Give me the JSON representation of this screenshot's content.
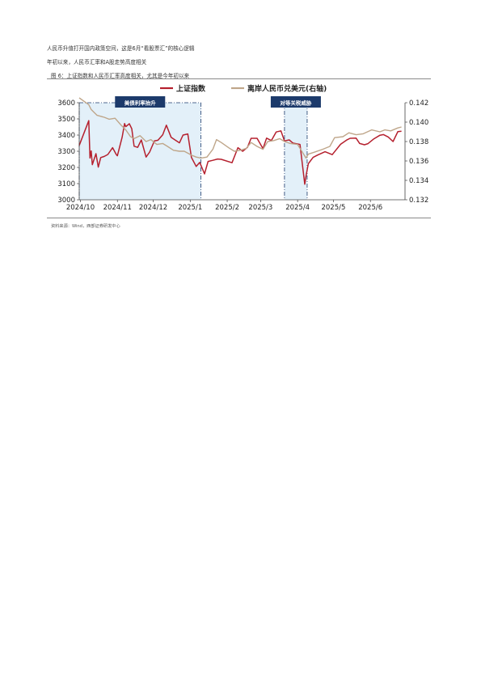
{
  "text": {
    "line1": "人民币升值打开国内政策空间，这是6月“看股票汇”的核心逻辑",
    "line2": "年初以来，人民币汇率和A股走势高度相关"
  },
  "figure": {
    "title": "图 6：上证指数和人民币汇率高度相关，尤其是今年初以来",
    "source": "资料来源：Wind，西部证券研发中心"
  },
  "chart_data": {
    "type": "line",
    "x_ticks": [
      "2024/10",
      "2024/11",
      "2024/12",
      "2025/1",
      "2025/2",
      "2025/3",
      "2025/4",
      "2025/5",
      "2025/6"
    ],
    "ylim": [
      3000,
      3600
    ],
    "y_ticks": [
      3000,
      3100,
      3200,
      3300,
      3400,
      3500,
      3600
    ],
    "y2lim": [
      0.132,
      0.142
    ],
    "y2_ticks": [
      "0.132",
      "0.134",
      "0.136",
      "0.138",
      "0.140",
      "0.142"
    ],
    "legend": {
      "placement": "top-center"
    },
    "colors": {
      "sse": "#b5202e",
      "cny": "#bfa68a",
      "annotation_fill": "#e3f0f9",
      "annotation_label_bg": "#1c3a6b"
    },
    "series": [
      {
        "name": "上证指数",
        "axis": "left",
        "x": [
          "2024-09-30",
          "2024-10-08",
          "2024-10-09",
          "2024-10-10",
          "2024-10-11",
          "2024-10-14",
          "2024-10-16",
          "2024-10-18",
          "2024-10-21",
          "2024-10-24",
          "2024-10-28",
          "2024-10-31",
          "2024-11-01",
          "2024-11-05",
          "2024-11-07",
          "2024-11-08",
          "2024-11-11",
          "2024-11-13",
          "2024-11-15",
          "2024-11-18",
          "2024-11-21",
          "2024-11-25",
          "2024-11-28",
          "2024-12-02",
          "2024-12-05",
          "2024-12-09",
          "2024-12-10",
          "2024-12-12",
          "2024-12-16",
          "2024-12-19",
          "2024-12-23",
          "2024-12-26",
          "2024-12-30",
          "2025-01-02",
          "2025-01-06",
          "2025-01-09",
          "2025-01-13",
          "2025-01-16",
          "2025-01-20",
          "2025-01-24",
          "2025-01-27",
          "2025-02-05",
          "2025-02-10",
          "2025-02-14",
          "2025-02-18",
          "2025-02-21",
          "2025-02-26",
          "2025-03-03",
          "2025-03-06",
          "2025-03-10",
          "2025-03-14",
          "2025-03-18",
          "2025-03-21",
          "2025-03-25",
          "2025-03-28",
          "2025-04-03",
          "2025-04-07",
          "2025-04-08",
          "2025-04-10",
          "2025-04-14",
          "2025-04-18",
          "2025-04-24",
          "2025-04-30",
          "2025-05-07",
          "2025-05-12",
          "2025-05-15",
          "2025-05-20",
          "2025-05-23",
          "2025-05-27",
          "2025-05-30",
          "2025-06-04",
          "2025-06-09",
          "2025-06-12",
          "2025-06-16",
          "2025-06-20",
          "2025-06-24",
          "2025-06-27"
        ],
        "values": [
          3336,
          3489,
          3258,
          3302,
          3217,
          3285,
          3202,
          3261,
          3268,
          3280,
          3322,
          3280,
          3272,
          3387,
          3471,
          3452,
          3470,
          3439,
          3331,
          3324,
          3370,
          3264,
          3295,
          3364,
          3368,
          3402,
          3422,
          3461,
          3386,
          3371,
          3352,
          3400,
          3407,
          3262,
          3206,
          3231,
          3160,
          3237,
          3244,
          3252,
          3250,
          3229,
          3322,
          3300,
          3324,
          3380,
          3380,
          3316,
          3381,
          3366,
          3419,
          3426,
          3364,
          3370,
          3351,
          3342,
          3096,
          3145,
          3223,
          3262,
          3277,
          3297,
          3279,
          3343,
          3369,
          3380,
          3381,
          3348,
          3340,
          3347,
          3377,
          3399,
          3403,
          3388,
          3360,
          3421,
          3424
        ]
      },
      {
        "name": "离岸人民币兑美元(右轴)",
        "axis": "right",
        "x": [
          "2024-09-30",
          "2024-10-08",
          "2024-10-10",
          "2024-10-15",
          "2024-10-21",
          "2024-10-25",
          "2024-10-30",
          "2024-11-04",
          "2024-11-08",
          "2024-11-12",
          "2024-11-15",
          "2024-11-20",
          "2024-11-25",
          "2024-11-29",
          "2024-12-04",
          "2024-12-09",
          "2024-12-13",
          "2024-12-18",
          "2024-12-23",
          "2024-12-27",
          "2025-01-02",
          "2025-01-06",
          "2025-01-10",
          "2025-01-15",
          "2025-01-20",
          "2025-01-23",
          "2025-01-27",
          "2025-02-03",
          "2025-02-07",
          "2025-02-12",
          "2025-02-17",
          "2025-02-21",
          "2025-02-26",
          "2025-03-03",
          "2025-03-07",
          "2025-03-12",
          "2025-03-17",
          "2025-03-21",
          "2025-03-26",
          "2025-04-01",
          "2025-04-04",
          "2025-04-08",
          "2025-04-10",
          "2025-04-15",
          "2025-04-22",
          "2025-04-28",
          "2025-05-02",
          "2025-05-09",
          "2025-05-14",
          "2025-05-20",
          "2025-05-26",
          "2025-06-02",
          "2025-06-09",
          "2025-06-13",
          "2025-06-18",
          "2025-06-24",
          "2025-06-27"
        ],
        "values": [
          0.1425,
          0.1418,
          0.1413,
          0.1407,
          0.1405,
          0.1403,
          0.1404,
          0.1397,
          0.1392,
          0.1385,
          0.1383,
          0.1386,
          0.138,
          0.1382,
          0.1377,
          0.1378,
          0.1375,
          0.1371,
          0.137,
          0.137,
          0.1366,
          0.1364,
          0.1363,
          0.1364,
          0.1372,
          0.1382,
          0.1379,
          0.1373,
          0.137,
          0.1371,
          0.1373,
          0.1379,
          0.1375,
          0.1372,
          0.138,
          0.1381,
          0.1383,
          0.138,
          0.1378,
          0.1377,
          0.1371,
          0.1363,
          0.1367,
          0.1369,
          0.1372,
          0.1375,
          0.1384,
          0.1385,
          0.1389,
          0.1387,
          0.1388,
          0.1392,
          0.139,
          0.1392,
          0.1391,
          0.1394,
          0.1395
        ]
      }
    ],
    "annotations": [
      {
        "label": "美债利率抬升",
        "start": "2024-09-30",
        "end": "2025-01-10"
      },
      {
        "label": "对等关税威胁",
        "start": "2025-03-21",
        "end": "2025-04-09"
      }
    ]
  }
}
